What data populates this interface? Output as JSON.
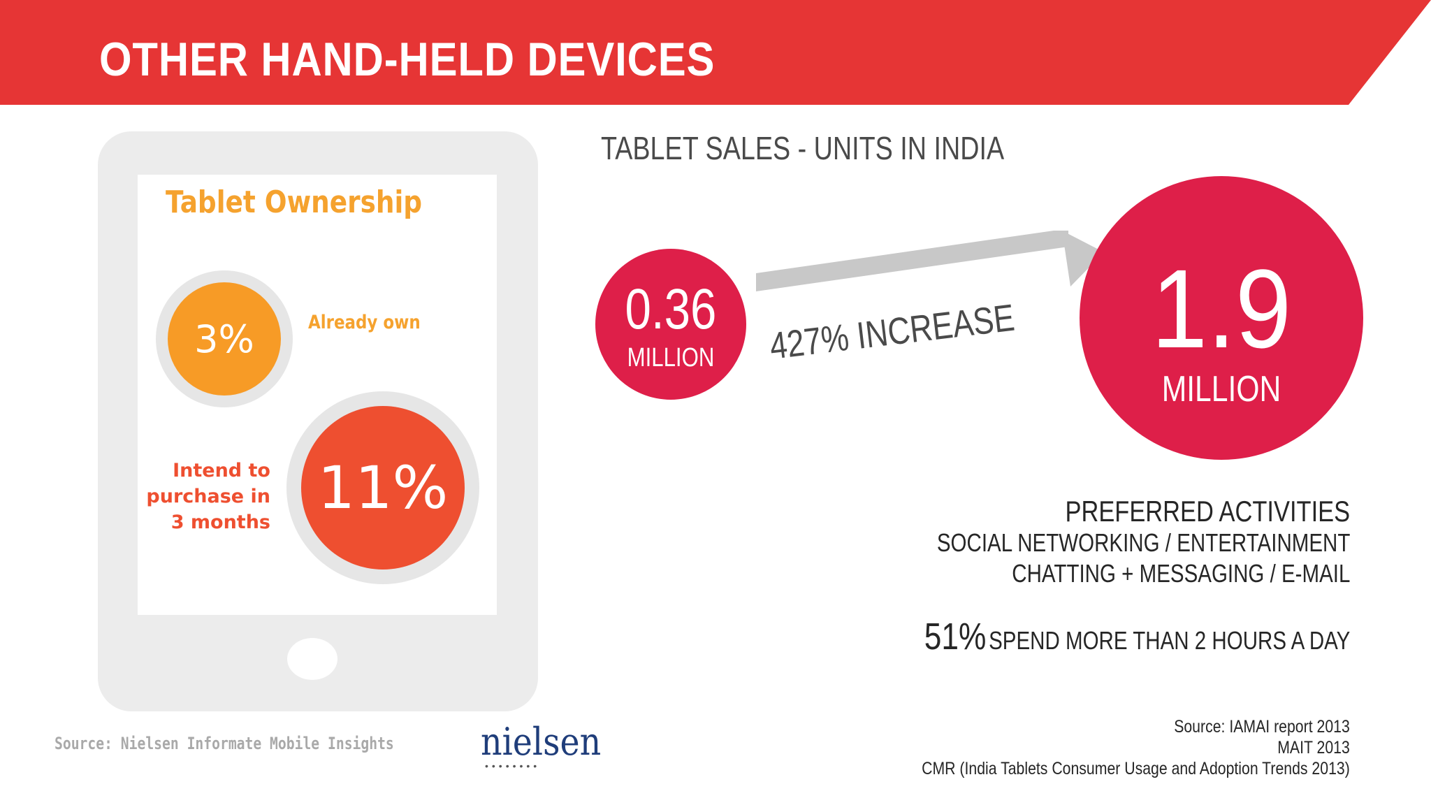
{
  "header": {
    "title": "OTHER HAND-HELD DEVICES",
    "color": "#e63535"
  },
  "tablet_graphic": {
    "title": "Tablet Ownership",
    "already_own_value": "3%",
    "already_own_label": "Already own",
    "intend_value": "11%",
    "intend_label_lines": [
      "Intend to",
      "purchase in",
      "3 months"
    ],
    "source": "Source: Nielsen Informate Mobile Insights",
    "logo_text": "nielsen"
  },
  "sales": {
    "title": "TABLET SALES - UNITS IN INDIA",
    "before_value": "0.36",
    "before_unit": "MILLION",
    "after_value": "1.9",
    "after_unit": "MILLION",
    "increase_label": "427% INCREASE",
    "accent_color": "#de1f49"
  },
  "activities": {
    "title": "PREFERRED ACTIVITIES",
    "line1": "SOCIAL NETWORKING / ENTERTAINMENT",
    "line2": "CHATTING + MESSAGING / E-MAIL"
  },
  "usage": {
    "percent": "51%",
    "text": "SPEND MORE THAN 2 HOURS A DAY"
  },
  "sources": [
    "Source: IAMAI report 2013",
    "MAIT 2013",
    "CMR (India Tablets Consumer Usage and Adoption Trends 2013)"
  ]
}
